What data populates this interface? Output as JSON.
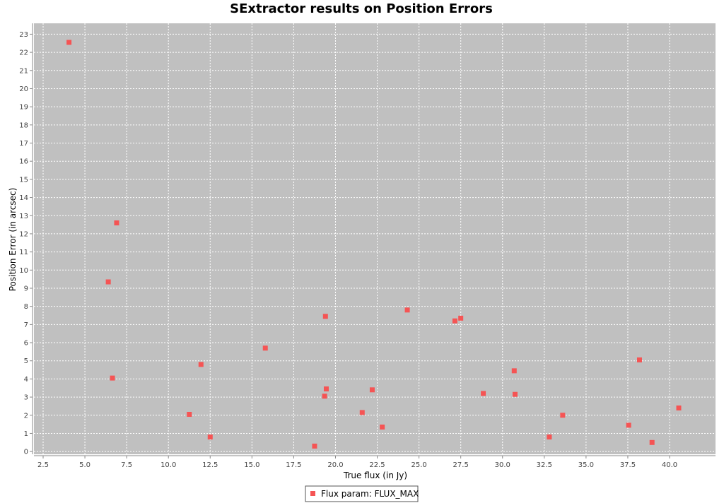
{
  "chart_data": {
    "type": "scatter",
    "title": "SExtractor results on Position Errors",
    "xlabel": "True flux (in Jy)",
    "ylabel": "Position Error (in arcsec)",
    "xlim": [
      1.95,
      42.75
    ],
    "ylim": [
      -0.15,
      23.6
    ],
    "xticks": [
      2.5,
      5.0,
      7.5,
      10.0,
      12.5,
      15.0,
      17.5,
      20.0,
      22.5,
      25.0,
      27.5,
      30.0,
      32.5,
      35.0,
      37.5,
      40.0
    ],
    "xtick_labels": [
      "2.5",
      "5.0",
      "7.5",
      "10.0",
      "12.5",
      "15.0",
      "17.5",
      "20.0",
      "22.5",
      "25.0",
      "27.5",
      "30.0",
      "32.5",
      "35.0",
      "37.5",
      "40.0"
    ],
    "yticks": [
      0,
      1,
      2,
      3,
      4,
      5,
      6,
      7,
      8,
      9,
      10,
      11,
      12,
      13,
      14,
      15,
      16,
      17,
      18,
      19,
      20,
      21,
      22,
      23
    ],
    "grid": true,
    "legend_position": "bottom-center",
    "colors": {
      "plot_background": "#c0c0c0",
      "marker": "#f55454",
      "grid": "#ffffff"
    },
    "series": [
      {
        "name": "Flux param: FLUX_MAX",
        "marker": "square",
        "points": [
          [
            4.05,
            22.55
          ],
          [
            6.9,
            12.6
          ],
          [
            6.4,
            9.35
          ],
          [
            6.65,
            4.05
          ],
          [
            11.25,
            2.05
          ],
          [
            11.95,
            4.8
          ],
          [
            12.5,
            0.8
          ],
          [
            15.8,
            5.7
          ],
          [
            18.75,
            0.3
          ],
          [
            19.35,
            3.05
          ],
          [
            19.4,
            7.45
          ],
          [
            19.45,
            3.45
          ],
          [
            21.6,
            2.15
          ],
          [
            22.2,
            3.4
          ],
          [
            22.8,
            1.35
          ],
          [
            24.3,
            7.8
          ],
          [
            27.15,
            7.2
          ],
          [
            27.5,
            7.35
          ],
          [
            28.85,
            3.2
          ],
          [
            30.7,
            4.45
          ],
          [
            30.75,
            3.15
          ],
          [
            32.8,
            0.8
          ],
          [
            33.6,
            2.0
          ],
          [
            37.55,
            1.45
          ],
          [
            38.2,
            5.05
          ],
          [
            38.95,
            0.5
          ],
          [
            40.55,
            2.4
          ]
        ]
      }
    ]
  }
}
